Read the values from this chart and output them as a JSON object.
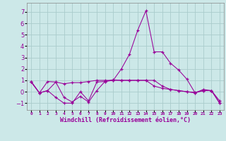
{
  "x": [
    0,
    1,
    2,
    3,
    4,
    5,
    6,
    7,
    8,
    9,
    10,
    11,
    12,
    13,
    14,
    15,
    16,
    17,
    18,
    19,
    20,
    21,
    22,
    23
  ],
  "line1": [
    0.9,
    -0.1,
    0.1,
    -0.5,
    -1.0,
    -1.0,
    0.0,
    -0.8,
    0.85,
    0.9,
    1.0,
    2.0,
    3.3,
    5.4,
    7.1,
    3.5,
    3.5,
    2.5,
    1.9,
    1.1,
    -0.1,
    0.2,
    0.1,
    -0.8
  ],
  "line2": [
    0.85,
    -0.1,
    0.9,
    0.85,
    0.7,
    0.8,
    0.8,
    0.9,
    1.0,
    1.0,
    1.0,
    1.0,
    1.0,
    1.0,
    1.0,
    1.0,
    0.5,
    0.2,
    0.1,
    0.0,
    -0.1,
    0.1,
    0.1,
    -1.0
  ],
  "line3": [
    0.85,
    -0.1,
    0.1,
    0.85,
    -0.5,
    -0.9,
    -0.4,
    -0.9,
    0.1,
    0.9,
    1.05,
    1.0,
    1.0,
    1.0,
    1.0,
    0.5,
    0.3,
    0.2,
    0.1,
    0.0,
    -0.05,
    0.1,
    0.1,
    -1.0
  ],
  "color": "#990099",
  "bg_color": "#cce8e8",
  "grid_color": "#aacccc",
  "xlabel": "Windchill (Refroidissement éolien,°C)",
  "yticks": [
    -1,
    0,
    1,
    2,
    3,
    4,
    5,
    6,
    7
  ],
  "ylim": [
    -1.6,
    7.8
  ],
  "xlim": [
    -0.5,
    23.5
  ]
}
